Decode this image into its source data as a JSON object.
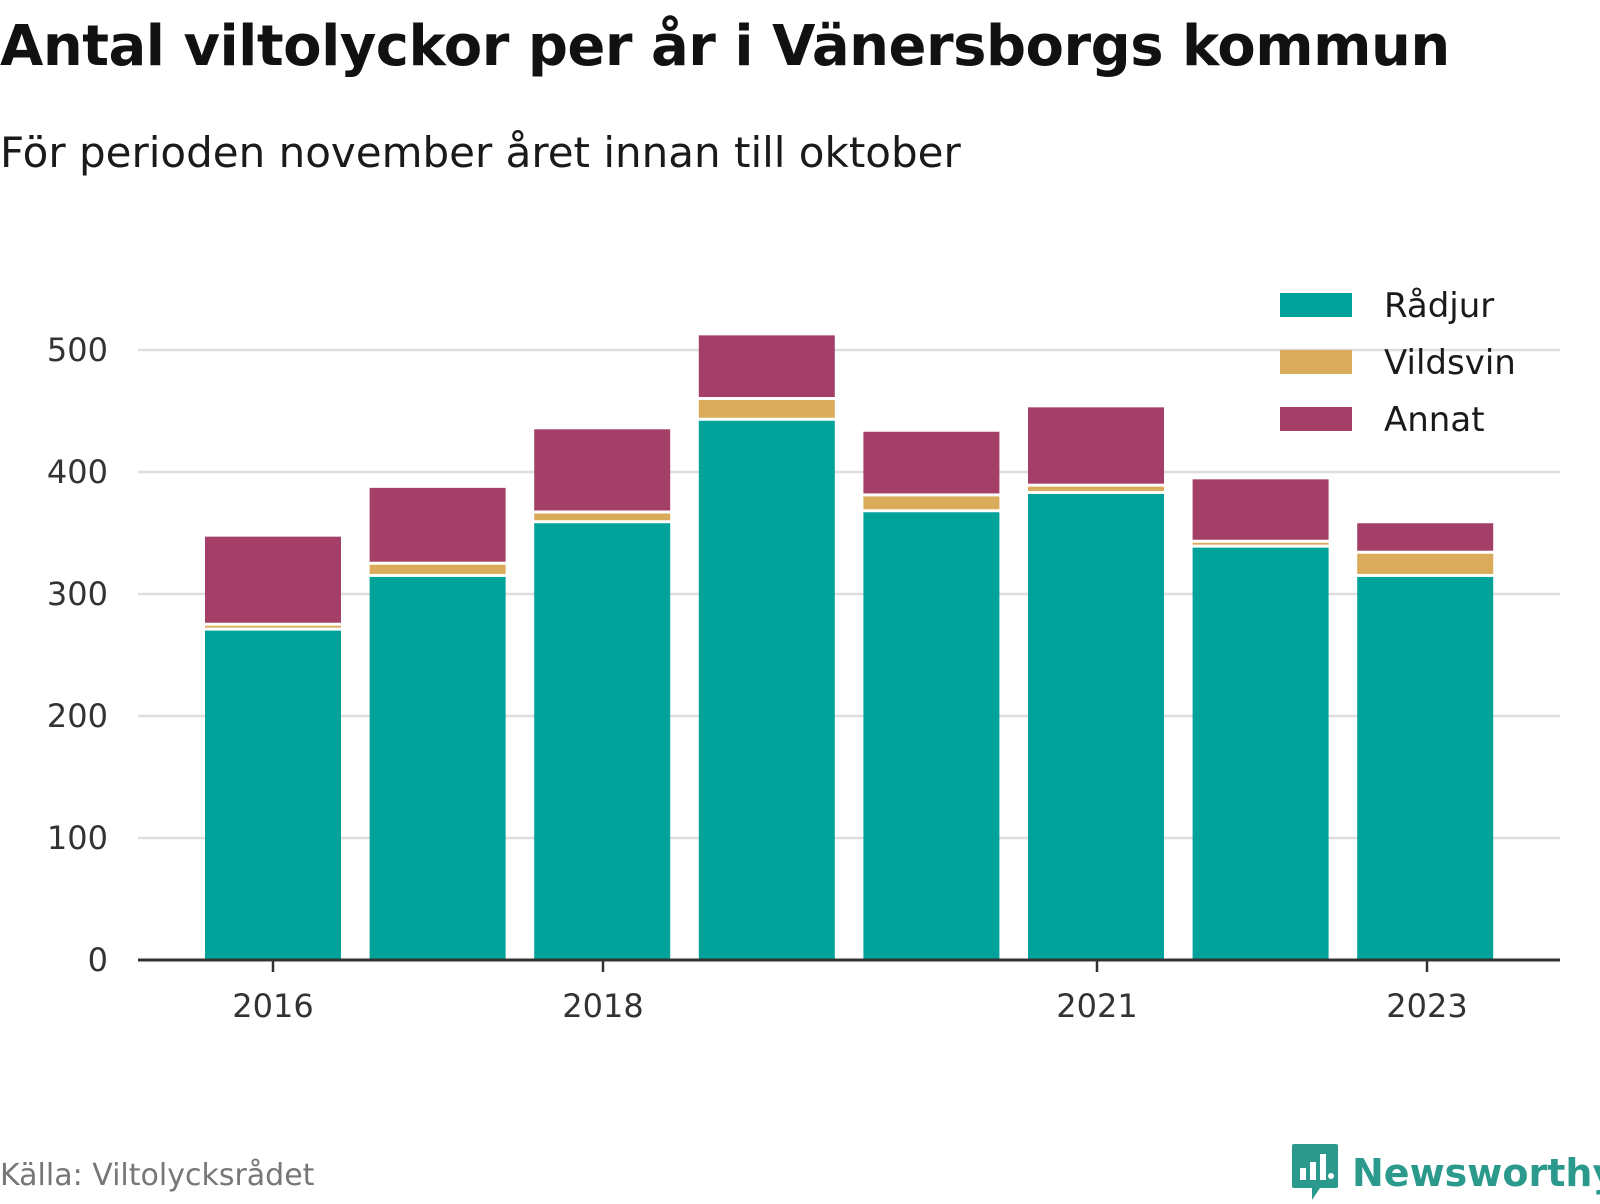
{
  "chart_data": {
    "type": "bar",
    "stacked": true,
    "title": "Antal viltolyckor per år i Vänersborgs kommun",
    "subtitle": "För perioden november året innan till oktober",
    "categories": [
      "2016",
      "2017",
      "2018",
      "2019",
      "2020",
      "2021",
      "2022",
      "2023"
    ],
    "x_tick_labels": [
      "2016",
      "2018",
      "2021",
      "2023"
    ],
    "series": [
      {
        "name": "Rådjur",
        "color": "#00a39a",
        "values": [
          270,
          314,
          358,
          442,
          367,
          382,
          338,
          314
        ]
      },
      {
        "name": "Vildsvin",
        "color": "#d9ab5b",
        "values": [
          4,
          10,
          8,
          17,
          13,
          6,
          4,
          19
        ]
      },
      {
        "name": "Annat",
        "color": "#a44068",
        "values": [
          73,
          63,
          69,
          53,
          53,
          65,
          52,
          25
        ]
      }
    ],
    "ylim": [
      0,
      550
    ],
    "y_ticks": [
      0,
      100,
      200,
      300,
      400,
      500
    ],
    "xlabel": "",
    "ylabel": "",
    "grid": true,
    "legend_position": "top-right"
  },
  "source": "Källa: Viltolycksrådet",
  "brand": {
    "label": "Newsworthy",
    "icon": "newsworthy-logo-icon",
    "color": "#2b9a8c"
  }
}
